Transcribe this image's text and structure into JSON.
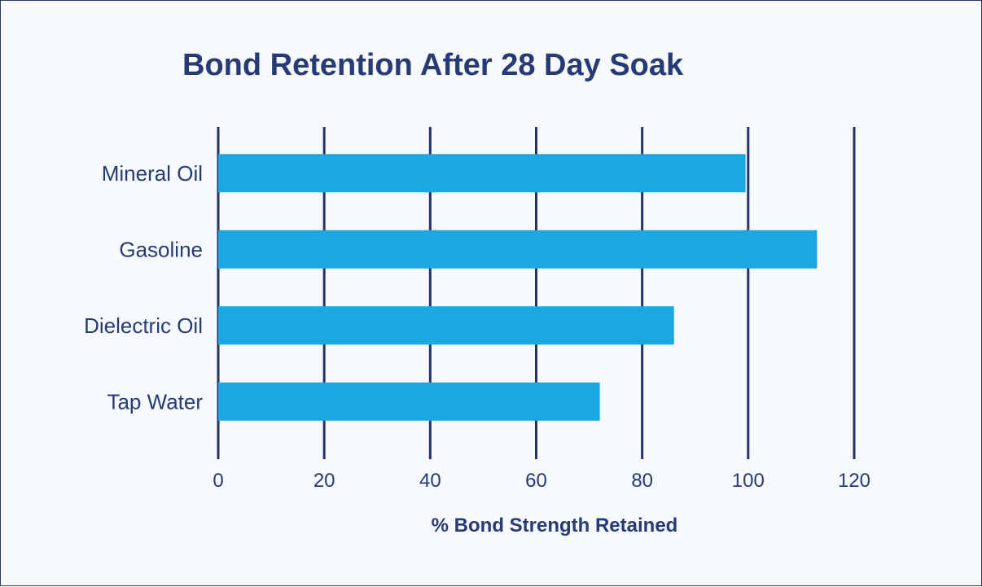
{
  "chart_data": {
    "type": "bar",
    "orientation": "horizontal",
    "title": "Bond Retention After 28 Day Soak",
    "xlabel": "% Bond Strength Retained",
    "ylabel": "",
    "categories": [
      "Mineral Oil",
      "Gasoline",
      "Dielectric Oil",
      "Tap Water"
    ],
    "values": [
      99.5,
      113,
      86,
      72
    ],
    "xlim": [
      0,
      120
    ],
    "xticks": [
      "0",
      "20",
      "40",
      "60",
      "80",
      "100",
      "120"
    ],
    "grid": true,
    "legend": "none"
  },
  "colors": {
    "bar": "#1ba7e0",
    "text": "#263a75",
    "grid": "#243266",
    "background": "#f7fafe"
  }
}
